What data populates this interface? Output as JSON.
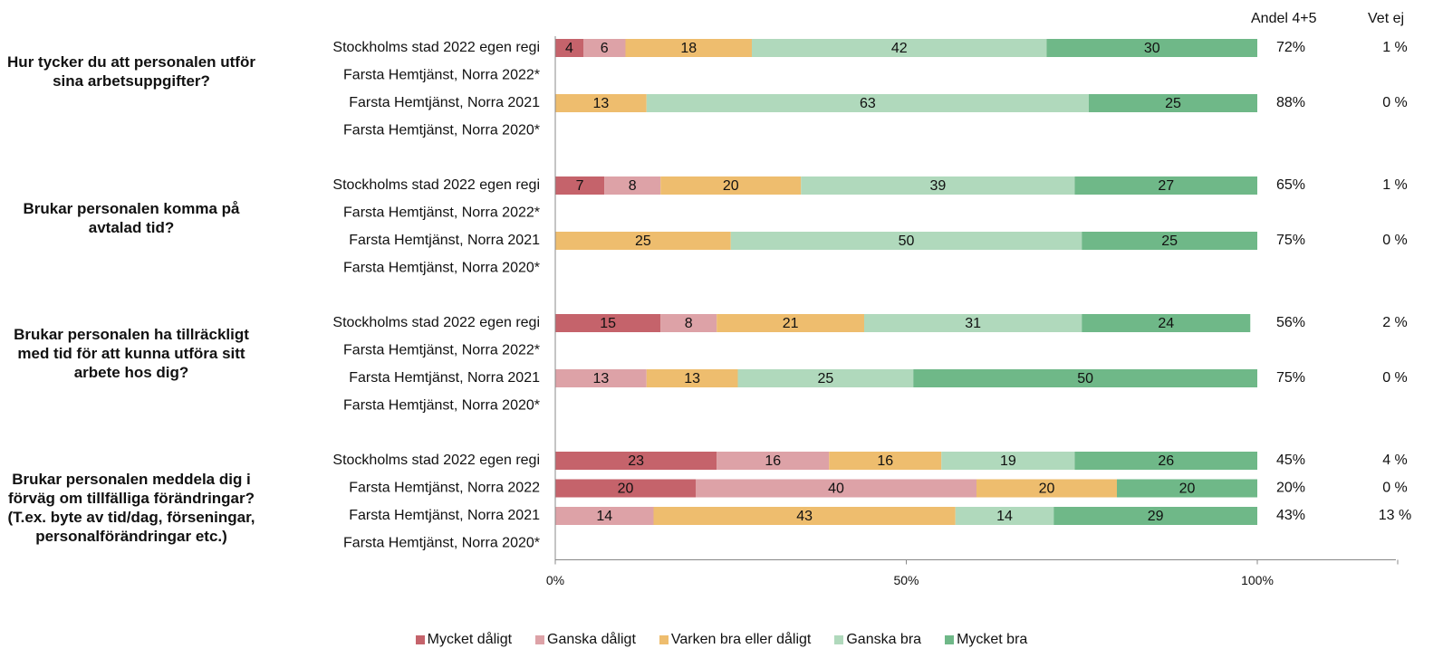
{
  "headers": {
    "share_45": "Andel 4+5",
    "dont_know": "Vet ej"
  },
  "chart_data": {
    "type": "bar",
    "orientation": "horizontal",
    "stacked": "100%",
    "xlim": [
      0,
      100
    ],
    "x_ticks": [
      "0%",
      "50%",
      "100%"
    ],
    "legend_position": "bottom",
    "colors": {
      "Mycket dåligt": "#c5636b",
      "Ganska dåligt": "#dda2a7",
      "Varken bra eller dåligt": "#eebd6e",
      "Ganska bra": "#b0d9bc",
      "Mycket bra": "#6fb888"
    },
    "legend": [
      "Mycket dåligt",
      "Ganska dåligt",
      "Varken bra eller dåligt",
      "Ganska bra",
      "Mycket bra"
    ],
    "groups": [
      {
        "question": "Hur tycker du att personalen utför sina arbetsuppgifter?",
        "rows": [
          {
            "label": "Stockholms stad 2022 egen regi",
            "values": [
              4,
              6,
              18,
              42,
              30
            ],
            "share_45": "72%",
            "dont_know": "1 %"
          },
          {
            "label": "Farsta  Hemtjänst,  Norra 2022*",
            "values": null,
            "share_45": "",
            "dont_know": ""
          },
          {
            "label": "Farsta  Hemtjänst,  Norra 2021",
            "values": [
              0,
              0,
              13,
              63,
              25
            ],
            "share_45": "88%",
            "dont_know": "0 %"
          },
          {
            "label": "Farsta  Hemtjänst,  Norra 2020*",
            "values": null,
            "share_45": "",
            "dont_know": ""
          }
        ]
      },
      {
        "question": "Brukar personalen komma på avtalad tid?",
        "rows": [
          {
            "label": "Stockholms stad 2022 egen regi",
            "values": [
              7,
              8,
              20,
              39,
              27
            ],
            "share_45": "65%",
            "dont_know": "1 %"
          },
          {
            "label": "Farsta  Hemtjänst,  Norra 2022*",
            "values": null,
            "share_45": "",
            "dont_know": ""
          },
          {
            "label": "Farsta  Hemtjänst,  Norra 2021",
            "values": [
              0,
              0,
              25,
              50,
              25
            ],
            "share_45": "75%",
            "dont_know": "0 %"
          },
          {
            "label": "Farsta  Hemtjänst,  Norra 2020*",
            "values": null,
            "share_45": "",
            "dont_know": ""
          }
        ]
      },
      {
        "question": "Brukar personalen ha tillräckligt med tid för att kunna utföra sitt arbete hos dig?",
        "rows": [
          {
            "label": "Stockholms stad 2022 egen regi",
            "values": [
              15,
              8,
              21,
              31,
              24
            ],
            "share_45": "56%",
            "dont_know": "2 %"
          },
          {
            "label": "Farsta  Hemtjänst,  Norra 2022*",
            "values": null,
            "share_45": "",
            "dont_know": ""
          },
          {
            "label": "Farsta  Hemtjänst,  Norra 2021",
            "values": [
              0,
              13,
              13,
              25,
              50
            ],
            "share_45": "75%",
            "dont_know": "0 %"
          },
          {
            "label": "Farsta  Hemtjänst,  Norra 2020*",
            "values": null,
            "share_45": "",
            "dont_know": ""
          }
        ]
      },
      {
        "question": "Brukar personalen meddela dig i förväg om tillfälliga förändringar? (T.ex. byte av tid/dag, förseningar, personalförändringar etc.)",
        "rows": [
          {
            "label": "Stockholms stad 2022 egen regi",
            "values": [
              23,
              16,
              16,
              19,
              26
            ],
            "share_45": "45%",
            "dont_know": "4 %"
          },
          {
            "label": "Farsta  Hemtjänst,  Norra 2022",
            "values": [
              20,
              40,
              20,
              0,
              20
            ],
            "share_45": "20%",
            "dont_know": "0 %"
          },
          {
            "label": "Farsta  Hemtjänst,  Norra 2021",
            "values": [
              0,
              14,
              43,
              14,
              29
            ],
            "share_45": "43%",
            "dont_know": "13 %"
          },
          {
            "label": "Farsta  Hemtjänst,  Norra 2020*",
            "values": null,
            "share_45": "",
            "dont_know": ""
          }
        ]
      }
    ]
  }
}
